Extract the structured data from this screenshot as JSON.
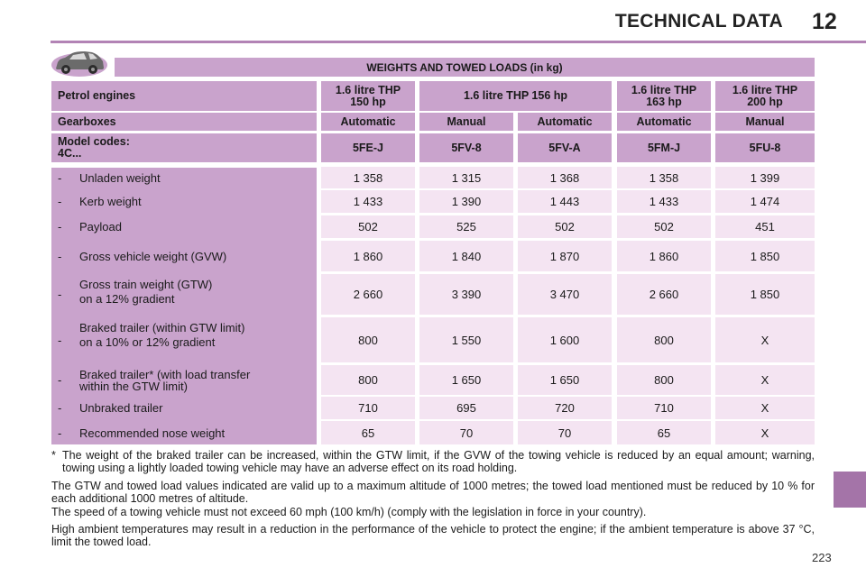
{
  "header": {
    "title": "TECHNICAL DATA",
    "chapter": "12"
  },
  "table": {
    "title": "WEIGHTS AND TOWED LOADS (in kg)",
    "engines_label": "Petrol engines",
    "engines": [
      "1.6 litre THP\n150 hp",
      "1.6 litre THP 156 hp",
      "1.6 litre THP\n163 hp",
      "1.6 litre THP\n200 hp"
    ],
    "gearboxes_label": "Gearboxes",
    "gearboxes": [
      "Automatic",
      "Manual",
      "Automatic",
      "Automatic",
      "Manual"
    ],
    "codes_label": "Model codes:\n4C...",
    "codes": [
      "5FE-J",
      "5FV-8",
      "5FV-A",
      "5FM-J",
      "5FU-8"
    ],
    "rows": [
      {
        "label": "Unladen weight",
        "values": [
          "1 358",
          "1 315",
          "1 368",
          "1 358",
          "1 399"
        ]
      },
      {
        "label": "Kerb weight",
        "values": [
          "1 433",
          "1 390",
          "1 443",
          "1 433",
          "1 474"
        ]
      },
      {
        "label": "Payload",
        "values": [
          "502",
          "525",
          "502",
          "502",
          "451"
        ]
      },
      {
        "label": "Gross vehicle weight (GVW)",
        "values": [
          "1 860",
          "1 840",
          "1 870",
          "1 860",
          "1 850"
        ]
      },
      {
        "label": "Gross train weight (GTW)\non a 12% gradient",
        "values": [
          "2 660",
          "3 390",
          "3 470",
          "2 660",
          "1 850"
        ]
      },
      {
        "label": "Braked trailer (within GTW limit)\non a 10% or 12% gradient",
        "values": [
          "800",
          "1 550",
          "1 600",
          "800",
          "X"
        ]
      },
      {
        "label": "Braked trailer* (with load transfer\nwithin the GTW limit)",
        "values": [
          "800",
          "1 650",
          "1 650",
          "800",
          "X"
        ]
      },
      {
        "label": "Unbraked trailer",
        "values": [
          "710",
          "695",
          "720",
          "710",
          "X"
        ]
      },
      {
        "label": "Recommended nose weight",
        "values": [
          "65",
          "70",
          "70",
          "65",
          "X"
        ]
      }
    ]
  },
  "notes": [
    "The weight of the braked trailer can be increased, within the GTW limit, if the GVW of the towing vehicle is reduced by an equal amount; warning, towing using a lightly loaded towing vehicle may have an adverse effect on its road holding.",
    "The GTW and towed load values indicated are valid up to a maximum altitude of 1000 metres; the towed load mentioned must be reduced by 10 % for each additional 1000 metres of altitude.",
    "The speed of a towing vehicle must not exceed 60 mph (100 km/h) (comply with the legislation in force in your country).",
    "High ambient temperatures may result in a reduction in the performance of the vehicle to protect the engine; if the ambient temperature is above 37 °C, limit the towed load."
  ],
  "footnote_mark": "*",
  "row_dash": "-",
  "page_number": "223",
  "colors": {
    "accent": "#b283b5",
    "header_fill": "#c9a3cc",
    "cell_fill": "#f4e4f2",
    "tab": "#a474a8"
  }
}
